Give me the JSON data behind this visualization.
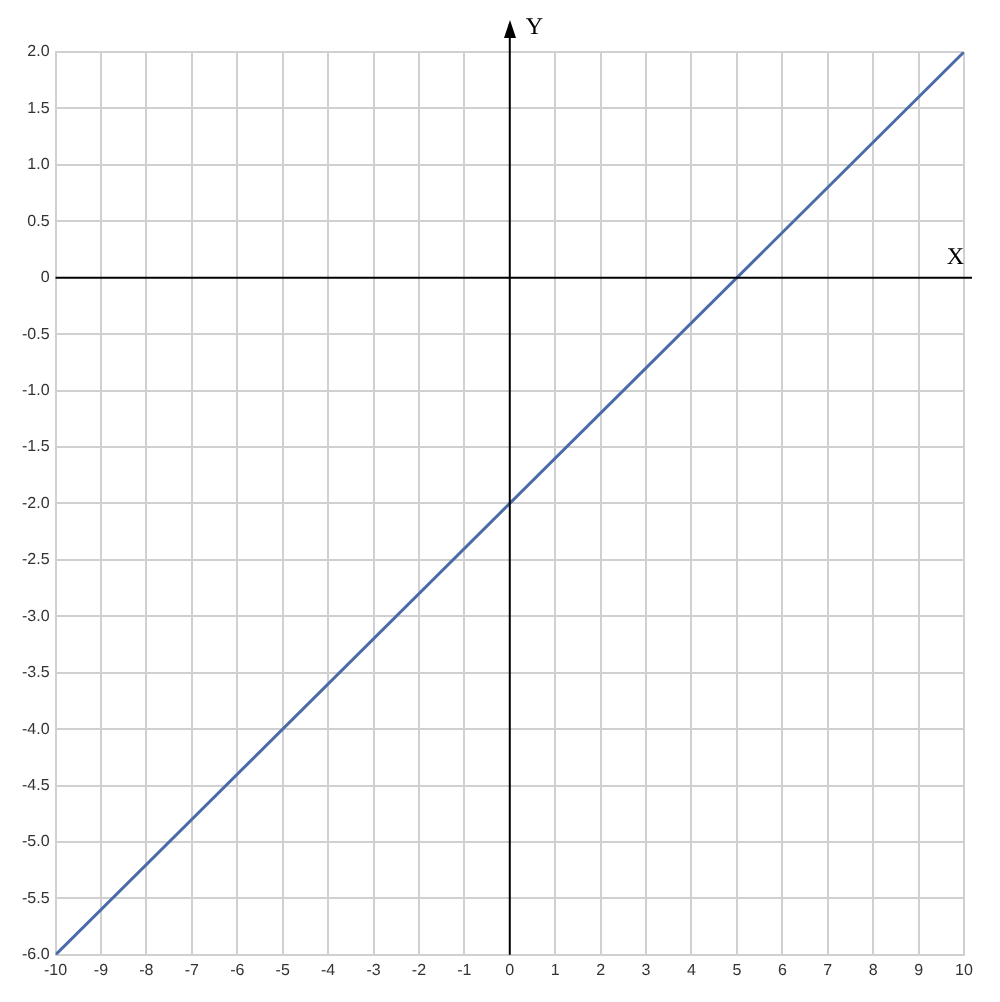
{
  "chart_data": {
    "type": "line",
    "xlabel": "X",
    "ylabel": "Y",
    "x": [
      -10,
      10
    ],
    "series": [
      {
        "color": "#4a6aa8",
        "values": [
          -6,
          2
        ]
      }
    ],
    "xlim": [
      -10,
      10
    ],
    "ylim": [
      -6,
      2
    ],
    "xticks": [
      -10,
      -9,
      -8,
      -7,
      -6,
      -5,
      -4,
      -3,
      -2,
      -1,
      0,
      1,
      2,
      3,
      4,
      5,
      6,
      7,
      8,
      9,
      10
    ],
    "yticks": [
      {
        "value": 2,
        "label": "2.0"
      },
      {
        "value": 1.5,
        "label": "1.5"
      },
      {
        "value": 1,
        "label": "1.0"
      },
      {
        "value": 0.5,
        "label": "0.5"
      },
      0,
      {
        "value": -0.5,
        "label": "-0.5"
      },
      {
        "value": -1,
        "label": "-1.0"
      },
      {
        "value": -1.5,
        "label": "-1.5"
      },
      {
        "value": -2,
        "label": "-2.0"
      },
      {
        "value": -2.5,
        "label": "-2.5"
      },
      {
        "value": -3,
        "label": "-3.0"
      },
      {
        "value": -3.5,
        "label": "-3.5"
      },
      {
        "value": -4,
        "label": "-4.0"
      },
      {
        "value": -4.5,
        "label": "-4.5"
      },
      {
        "value": -5,
        "label": "-5.0"
      },
      {
        "value": -5.5,
        "label": "-5.5"
      },
      {
        "value": -6,
        "label": "-6.0"
      }
    ],
    "grid": true,
    "marker": "none",
    "line_style": "solid",
    "legend": false
  }
}
